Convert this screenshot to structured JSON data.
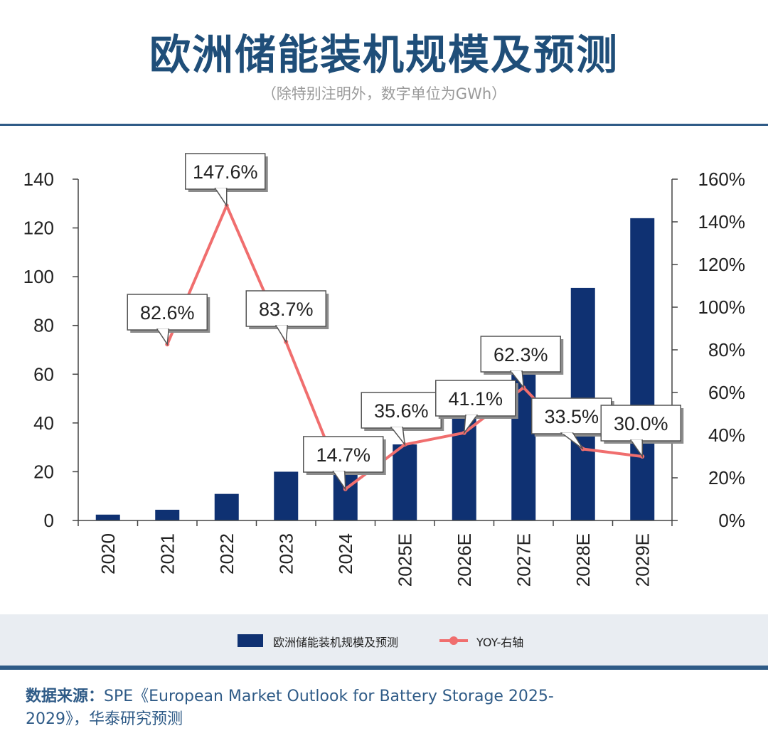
{
  "header": {
    "title": "欧洲储能装机规模及预测",
    "subtitle": "（除特别注明外，数字单位为GWh）"
  },
  "legend": {
    "bar_label": "欧洲储能装机规模及预测",
    "line_label": "YOY-右轴"
  },
  "source": {
    "label": "数据来源：",
    "text": "SPE《European Market Outlook for Battery Storage 2025-2029》，华泰研究预测"
  },
  "colors": {
    "bar": "#0f3172",
    "line": "#f06e6e",
    "title": "#1f4e79",
    "rule": "#2f5b87"
  },
  "chart_data": {
    "type": "bar",
    "categories": [
      "2020",
      "2021",
      "2022",
      "2023",
      "2024",
      "2025E",
      "2026E",
      "2027E",
      "2028E",
      "2029E"
    ],
    "series": [
      {
        "name": "欧洲储能装机规模及预测",
        "type": "bar",
        "axis": "left",
        "values": [
          2.4,
          4.4,
          10.9,
          20.0,
          23.0,
          31.2,
          44.0,
          71.4,
          95.4,
          124.0
        ]
      },
      {
        "name": "YOY-右轴",
        "type": "line",
        "axis": "right",
        "values": [
          null,
          82.6,
          147.6,
          83.7,
          14.7,
          35.6,
          41.1,
          62.3,
          33.5,
          30.0
        ]
      }
    ],
    "data_labels": [
      null,
      "82.6%",
      "147.6%",
      "83.7%",
      "14.7%",
      "35.6%",
      "41.1%",
      "62.3%",
      "33.5%",
      "30.0%"
    ],
    "y_left": {
      "ticks": [
        "0",
        "20",
        "40",
        "60",
        "80",
        "100",
        "120",
        "140"
      ],
      "ylim": [
        0,
        140
      ]
    },
    "y_right": {
      "ticks": [
        "0%",
        "20%",
        "40%",
        "60%",
        "80%",
        "100%",
        "120%",
        "140%",
        "160%"
      ],
      "ylim": [
        0,
        160
      ]
    },
    "grid": false,
    "legend_position": "bottom"
  }
}
